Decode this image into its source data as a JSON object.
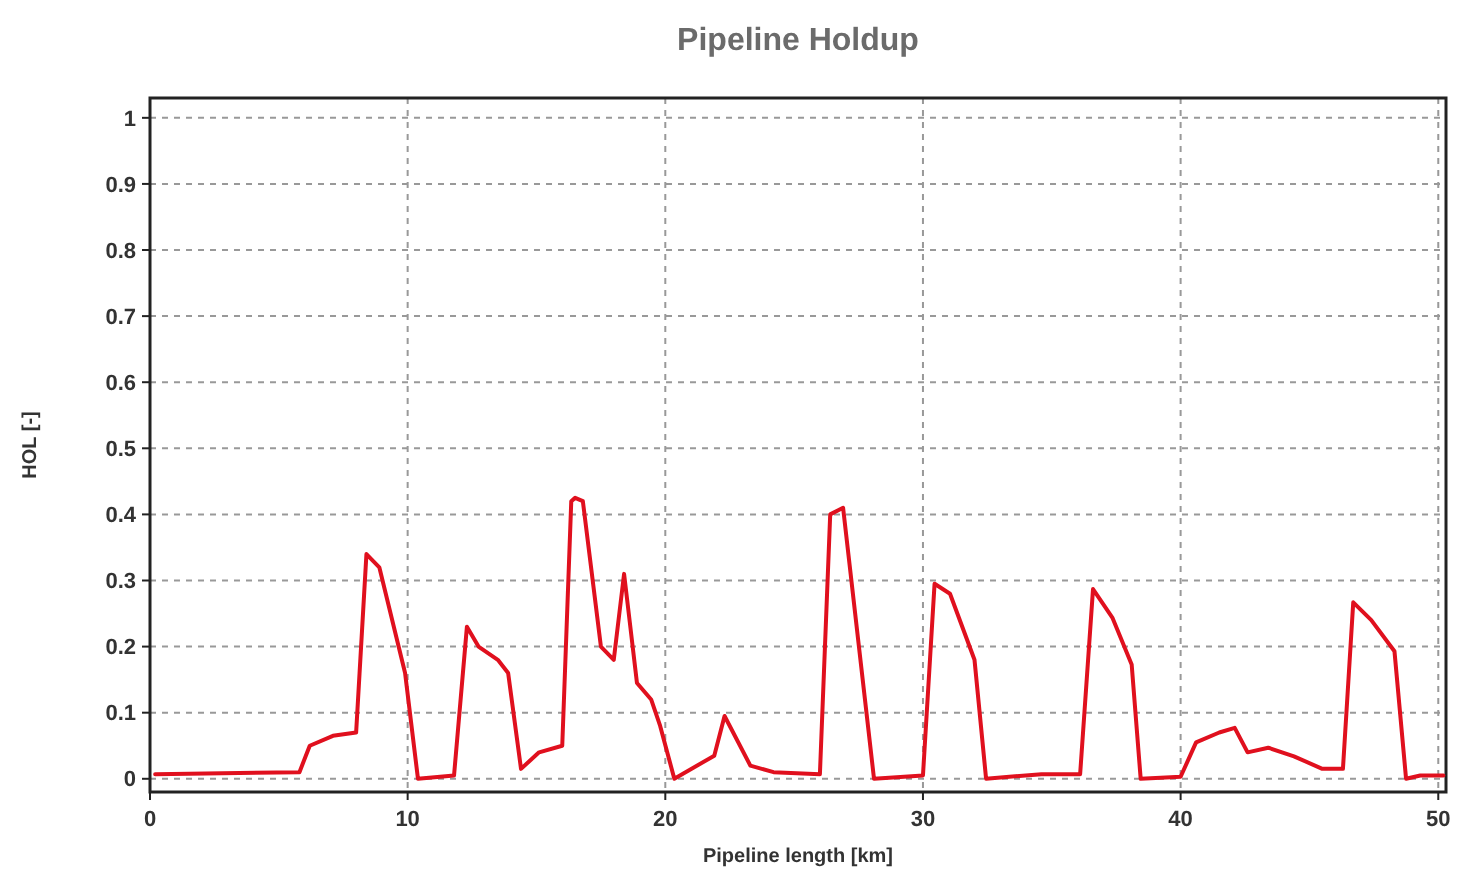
{
  "chart_data": {
    "type": "line",
    "title": "Pipeline Holdup",
    "xlabel": "Pipeline length [km]",
    "ylabel": "HOL [-]",
    "xlim": [
      0,
      50.3
    ],
    "ylim": [
      -0.02,
      1.03
    ],
    "xticks": [
      0,
      10,
      20,
      30,
      40,
      50
    ],
    "yticks": [
      0,
      0.1,
      0.2,
      0.3,
      0.4,
      0.5,
      0.6,
      0.7,
      0.8,
      0.9,
      1
    ],
    "grid": true,
    "marker": "none",
    "line_style": "solid",
    "series": [
      {
        "color": "#e0101e",
        "x": [
          0.2,
          5.8,
          6.2,
          7.1,
          8.0,
          8.4,
          8.9,
          9.9,
          10.4,
          11.8,
          12.3,
          12.75,
          13.5,
          13.9,
          14.4,
          15.1,
          16.0,
          16.35,
          16.5,
          16.8,
          17.5,
          18.0,
          18.4,
          18.9,
          19.45,
          19.8,
          20.35,
          21.9,
          22.3,
          23.3,
          24.2,
          26.0,
          26.4,
          26.9,
          28.1,
          30.0,
          30.45,
          31.05,
          32.0,
          32.45,
          34.6,
          36.1,
          36.6,
          37.35,
          38.1,
          38.45,
          40.0,
          40.6,
          41.5,
          42.1,
          42.6,
          43.4,
          44.4,
          45.5,
          46.3,
          46.7,
          47.4,
          48.3,
          48.75,
          49.3,
          50.2
        ],
        "values": [
          0.007,
          0.01,
          0.05,
          0.065,
          0.07,
          0.34,
          0.32,
          0.16,
          0.0,
          0.005,
          0.23,
          0.2,
          0.18,
          0.16,
          0.015,
          0.04,
          0.05,
          0.42,
          0.425,
          0.42,
          0.2,
          0.18,
          0.31,
          0.145,
          0.12,
          0.08,
          0.0,
          0.035,
          0.095,
          0.02,
          0.01,
          0.007,
          0.4,
          0.41,
          0.0,
          0.005,
          0.295,
          0.28,
          0.18,
          0.0,
          0.007,
          0.007,
          0.287,
          0.244,
          0.173,
          0.0,
          0.003,
          0.055,
          0.07,
          0.077,
          0.04,
          0.047,
          0.034,
          0.015,
          0.015,
          0.267,
          0.24,
          0.193,
          0.0,
          0.005,
          0.005
        ]
      }
    ]
  }
}
